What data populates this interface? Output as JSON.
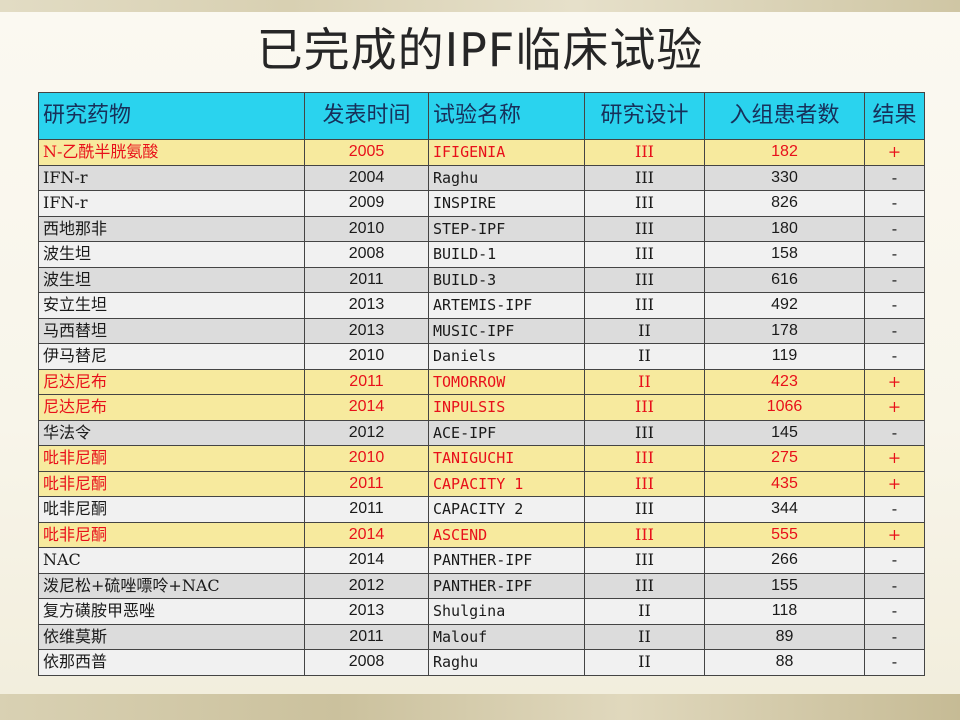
{
  "title": "已完成的IPF临床试验",
  "table": {
    "headers": [
      "研究药物",
      "发表时间",
      "试验名称",
      "研究设计",
      "入组患者数",
      "结果"
    ],
    "rows": [
      {
        "drug": "N-乙酰半胱氨酸",
        "year": "2005",
        "trial": "IFIGENIA",
        "design": "III",
        "n": "182",
        "result": "+",
        "highlight": true
      },
      {
        "drug": "IFN-r",
        "year": "2004",
        "trial": "Raghu",
        "design": "III",
        "n": "330",
        "result": "-",
        "highlight": false
      },
      {
        "drug": "IFN-r",
        "year": "2009",
        "trial": "INSPIRE",
        "design": "III",
        "n": "826",
        "result": "-",
        "highlight": false
      },
      {
        "drug": "西地那非",
        "year": "2010",
        "trial": "STEP-IPF",
        "design": "III",
        "n": "180",
        "result": "-",
        "highlight": false
      },
      {
        "drug": "波生坦",
        "year": "2008",
        "trial": "BUILD-1",
        "design": "III",
        "n": "158",
        "result": "-",
        "highlight": false
      },
      {
        "drug": "波生坦",
        "year": "2011",
        "trial": "BUILD-3",
        "design": "III",
        "n": "616",
        "result": "-",
        "highlight": false
      },
      {
        "drug": "安立生坦",
        "year": "2013",
        "trial": "ARTEMIS-IPF",
        "design": "III",
        "n": "492",
        "result": "-",
        "highlight": false
      },
      {
        "drug": "马西替坦",
        "year": "2013",
        "trial": "MUSIC-IPF",
        "design": "II",
        "n": "178",
        "result": "-",
        "highlight": false
      },
      {
        "drug": "伊马替尼",
        "year": "2010",
        "trial": "Daniels",
        "design": "II",
        "n": "119",
        "result": "-",
        "highlight": false
      },
      {
        "drug": "尼达尼布",
        "year": "2011",
        "trial": "TOMORROW",
        "design": "II",
        "n": "423",
        "result": "+",
        "highlight": true
      },
      {
        "drug": "尼达尼布",
        "year": "2014",
        "trial": "INPULSIS",
        "design": "III",
        "n": "1066",
        "result": "+",
        "highlight": true
      },
      {
        "drug": "华法令",
        "year": "2012",
        "trial": "ACE-IPF",
        "design": "III",
        "n": "145",
        "result": "-",
        "highlight": false
      },
      {
        "drug": "吡非尼酮",
        "year": "2010",
        "trial": "TANIGUCHI",
        "design": "III",
        "n": "275",
        "result": "+",
        "highlight": true
      },
      {
        "drug": "吡非尼酮",
        "year": "2011",
        "trial": "CAPACITY 1",
        "design": "III",
        "n": "435",
        "result": "+",
        "highlight": true
      },
      {
        "drug": "吡非尼酮",
        "year": "2011",
        "trial": "CAPACITY 2",
        "design": "III",
        "n": "344",
        "result": "-",
        "highlight": false
      },
      {
        "drug": "吡非尼酮",
        "year": "2014",
        "trial": "ASCEND",
        "design": "III",
        "n": "555",
        "result": "+",
        "highlight": true
      },
      {
        "drug": "NAC",
        "year": "2014",
        "trial": "PANTHER-IPF",
        "design": "III",
        "n": "266",
        "result": "-",
        "highlight": false
      },
      {
        "drug": "泼尼松+硫唑嘌呤+NAC",
        "year": "2012",
        "trial": "PANTHER-IPF",
        "design": "III",
        "n": "155",
        "result": "-",
        "highlight": false
      },
      {
        "drug": "复方磺胺甲恶唑",
        "year": "2013",
        "trial": "Shulgina",
        "design": "II",
        "n": "118",
        "result": "-",
        "highlight": false
      },
      {
        "drug": "依维莫斯",
        "year": "2011",
        "trial": "Malouf",
        "design": "II",
        "n": "89",
        "result": "-",
        "highlight": false
      },
      {
        "drug": "依那西普",
        "year": "2008",
        "trial": "Raghu",
        "design": "II",
        "n": "88",
        "result": "-",
        "highlight": false
      }
    ]
  },
  "colors": {
    "header_bg": "#2ad3ee",
    "highlight_bg": "#f7ea9e",
    "highlight_text": "#e8101a"
  }
}
